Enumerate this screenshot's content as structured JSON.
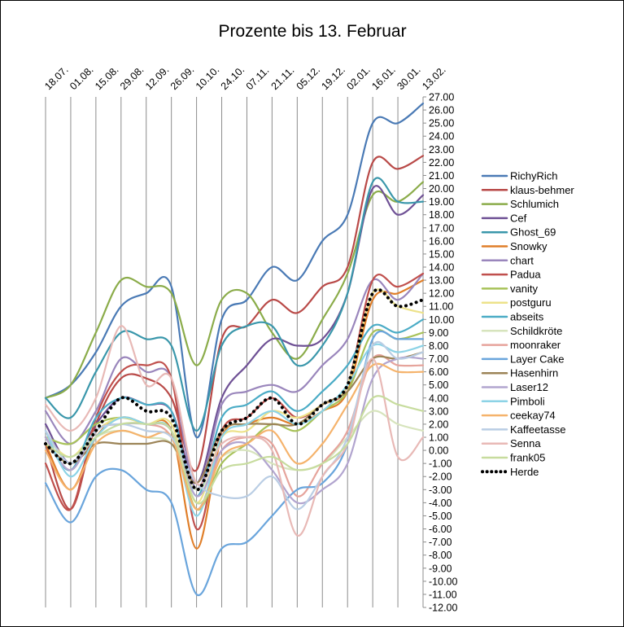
{
  "chart_data": {
    "type": "line",
    "title": "Prozente bis 13. Februar",
    "xlabel": "",
    "ylabel": "",
    "x": [
      "18.07.",
      "01.08.",
      "15.08.",
      "29.08.",
      "12.09.",
      "26.09.",
      "10.10.",
      "24.10.",
      "07.11.",
      "21.11.",
      "05.12.",
      "19.12.",
      "02.01.",
      "16.01.",
      "30.01.",
      "13.02."
    ],
    "ylim": [
      -12,
      27
    ],
    "y_step": 1,
    "y_axis_position": "right",
    "x_axis_position": "top",
    "grid": "vertical",
    "legend_position": "right",
    "series": [
      {
        "name": "RichyRich",
        "color": "#4a7ab5",
        "style": "solid",
        "values": [
          4.0,
          5.0,
          7.5,
          11.0,
          12.0,
          12.5,
          1.0,
          10.0,
          11.5,
          14.0,
          13.0,
          16.0,
          18.0,
          25.0,
          25.0,
          26.5
        ]
      },
      {
        "name": "klaus-behmer",
        "color": "#b94a48",
        "style": "solid",
        "values": [
          0.5,
          -4.5,
          2.0,
          5.5,
          5.5,
          4.0,
          -1.5,
          8.5,
          9.5,
          11.5,
          10.5,
          12.5,
          14.0,
          22.0,
          21.5,
          22.5
        ]
      },
      {
        "name": "Schlumich",
        "color": "#8bac4a",
        "style": "solid",
        "values": [
          4.0,
          5.0,
          9.0,
          13.0,
          12.5,
          12.0,
          6.5,
          11.5,
          12.0,
          9.0,
          7.0,
          10.0,
          13.5,
          19.5,
          19.0,
          20.5
        ]
      },
      {
        "name": "Cef",
        "color": "#6f5195",
        "style": "solid",
        "values": [
          2.0,
          -1.0,
          2.0,
          4.0,
          3.5,
          3.0,
          -2.5,
          4.0,
          6.5,
          8.5,
          8.0,
          8.5,
          12.0,
          20.0,
          18.0,
          19.5
        ]
      },
      {
        "name": "Ghost_69",
        "color": "#3a97ab",
        "style": "solid",
        "values": [
          4.0,
          2.5,
          6.0,
          9.0,
          8.5,
          8.0,
          1.5,
          8.0,
          9.5,
          9.5,
          6.5,
          8.0,
          12.0,
          20.5,
          19.0,
          19.0
        ]
      },
      {
        "name": "Snowky",
        "color": "#e07f2a",
        "style": "solid",
        "values": [
          0.5,
          -3.0,
          1.0,
          2.5,
          2.0,
          1.5,
          -7.5,
          1.0,
          2.0,
          2.5,
          2.0,
          3.0,
          4.5,
          11.5,
          12.0,
          13.0
        ]
      },
      {
        "name": "chart",
        "color": "#9a86bc",
        "style": "solid",
        "values": [
          3.0,
          0.5,
          3.0,
          7.0,
          6.0,
          5.5,
          -3.0,
          3.5,
          4.5,
          5.0,
          4.5,
          6.5,
          8.5,
          13.0,
          11.5,
          13.5
        ]
      },
      {
        "name": "Padua",
        "color": "#c0504d",
        "style": "solid",
        "values": [
          -1.0,
          -4.5,
          2.5,
          6.0,
          6.5,
          5.5,
          -6.0,
          1.5,
          2.5,
          4.0,
          2.5,
          3.5,
          5.0,
          13.0,
          12.5,
          13.5
        ]
      },
      {
        "name": "vanity",
        "color": "#a8c259",
        "style": "solid",
        "values": [
          1.0,
          0.5,
          2.0,
          2.5,
          2.0,
          1.5,
          -4.5,
          -1.0,
          0.5,
          2.0,
          1.5,
          3.0,
          4.5,
          9.0,
          8.5,
          9.0
        ]
      },
      {
        "name": "postguru",
        "color": "#ede28a",
        "style": "solid",
        "values": [
          1.0,
          -0.5,
          1.5,
          2.5,
          2.0,
          2.0,
          -4.0,
          1.0,
          1.5,
          3.0,
          2.5,
          3.5,
          5.0,
          12.0,
          11.0,
          10.5
        ]
      },
      {
        "name": "abseits",
        "color": "#4bacc6",
        "style": "solid",
        "values": [
          1.0,
          -1.5,
          2.5,
          4.0,
          3.5,
          3.0,
          -3.5,
          2.5,
          3.5,
          4.5,
          3.0,
          4.5,
          6.5,
          9.5,
          9.0,
          10.0
        ]
      },
      {
        "name": "Schildkröte",
        "color": "#d7e4bd",
        "style": "solid",
        "values": [
          0.5,
          -1.0,
          1.0,
          1.5,
          1.0,
          0.5,
          -3.0,
          -0.5,
          0.0,
          -1.0,
          -1.5,
          -1.0,
          1.0,
          3.0,
          2.0,
          1.5
        ]
      },
      {
        "name": "moonraker",
        "color": "#e6a49c",
        "style": "solid",
        "values": [
          1.0,
          -1.5,
          1.5,
          2.0,
          2.0,
          1.0,
          -4.5,
          0.0,
          1.0,
          0.5,
          -3.5,
          -1.0,
          1.5,
          7.0,
          6.5,
          6.5
        ]
      },
      {
        "name": "Layer Cake",
        "color": "#6aa5dc",
        "style": "solid",
        "values": [
          -2.5,
          -5.5,
          -2.0,
          -1.5,
          -3.0,
          -4.0,
          -11.0,
          -7.5,
          -7.0,
          -5.0,
          -3.0,
          -2.5,
          0.5,
          8.5,
          8.5,
          8.5
        ]
      },
      {
        "name": "Hasenhirn",
        "color": "#9c8457",
        "style": "solid",
        "values": [
          0.5,
          -1.0,
          0.5,
          0.5,
          0.5,
          0.5,
          -2.5,
          1.5,
          2.0,
          2.0,
          2.0,
          3.5,
          4.5,
          7.0,
          7.0,
          7.5
        ]
      },
      {
        "name": "Laser12",
        "color": "#b2a5cf",
        "style": "solid",
        "values": [
          1.0,
          -1.5,
          1.5,
          2.0,
          2.0,
          1.5,
          -3.5,
          0.0,
          0.5,
          -1.5,
          -4.0,
          -3.0,
          -1.0,
          5.5,
          7.0,
          7.0
        ]
      },
      {
        "name": "Pimboli",
        "color": "#8cd3e6",
        "style": "solid",
        "values": [
          1.5,
          -2.0,
          1.0,
          2.5,
          2.0,
          1.5,
          -5.0,
          1.0,
          2.0,
          3.0,
          2.0,
          3.0,
          5.0,
          8.0,
          7.5,
          8.0
        ]
      },
      {
        "name": "ceekay74",
        "color": "#f5b36c",
        "style": "solid",
        "values": [
          0.0,
          -3.0,
          0.5,
          1.5,
          1.0,
          1.0,
          -4.5,
          -0.5,
          0.5,
          1.5,
          -1.0,
          0.5,
          3.5,
          6.5,
          6.0,
          6.0
        ]
      },
      {
        "name": "Kaffeetasse",
        "color": "#b9cde4",
        "style": "solid",
        "values": [
          1.5,
          -1.0,
          1.5,
          2.0,
          1.5,
          1.0,
          -2.5,
          -3.5,
          -3.5,
          -2.0,
          -4.5,
          -2.0,
          1.0,
          8.0,
          7.0,
          7.5
        ]
      },
      {
        "name": "Senna",
        "color": "#e8b9b6",
        "style": "solid",
        "values": [
          3.5,
          1.5,
          4.0,
          9.5,
          5.0,
          5.5,
          -2.5,
          0.5,
          1.0,
          0.0,
          -6.5,
          -2.0,
          0.5,
          7.0,
          -0.5,
          1.0
        ]
      },
      {
        "name": "frank05",
        "color": "#c7dc9e",
        "style": "solid",
        "values": [
          0.5,
          -0.5,
          1.0,
          2.0,
          2.0,
          1.5,
          -4.0,
          -1.5,
          -1.0,
          -0.5,
          -1.5,
          -1.0,
          0.5,
          4.0,
          3.5,
          3.0
        ]
      },
      {
        "name": "Herde",
        "color": "#000000",
        "style": "dotted",
        "values": [
          0.5,
          -1.0,
          1.5,
          4.0,
          3.0,
          2.5,
          -3.0,
          1.5,
          2.5,
          4.0,
          2.0,
          3.5,
          5.0,
          12.0,
          11.0,
          11.5
        ]
      }
    ]
  }
}
